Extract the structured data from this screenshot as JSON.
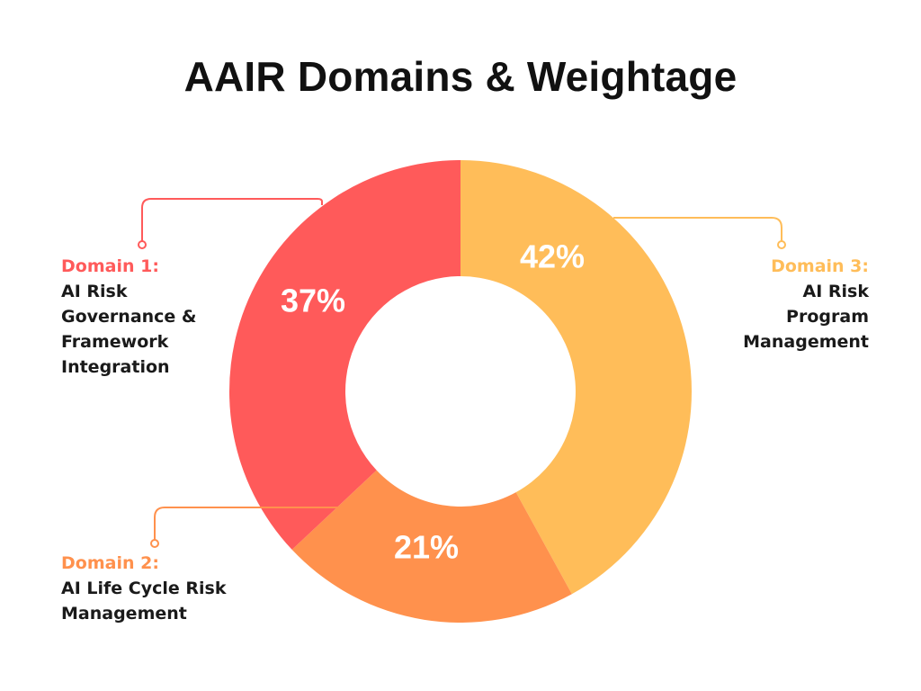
{
  "chart_data": {
    "type": "pie",
    "title": "AAIR Domains & Weightage",
    "donut": true,
    "slices": [
      {
        "domain": "Domain 1:",
        "label": "AI Risk\nGovernance &\nFramework\nIntegration",
        "value": 37,
        "display": "37%",
        "color": "#FF5A5A"
      },
      {
        "domain": "Domain 2:",
        "label": "AI Life Cycle Risk\nManagement",
        "value": 21,
        "display": "21%",
        "color": "#FF914D"
      },
      {
        "domain": "Domain 3:",
        "label": "AI Risk\nProgram\nManagement",
        "value": 42,
        "display": "42%",
        "color": "#FFBD59"
      }
    ],
    "draw_order": [
      2,
      1,
      0
    ],
    "start_at": "top",
    "direction": "clockwise"
  }
}
